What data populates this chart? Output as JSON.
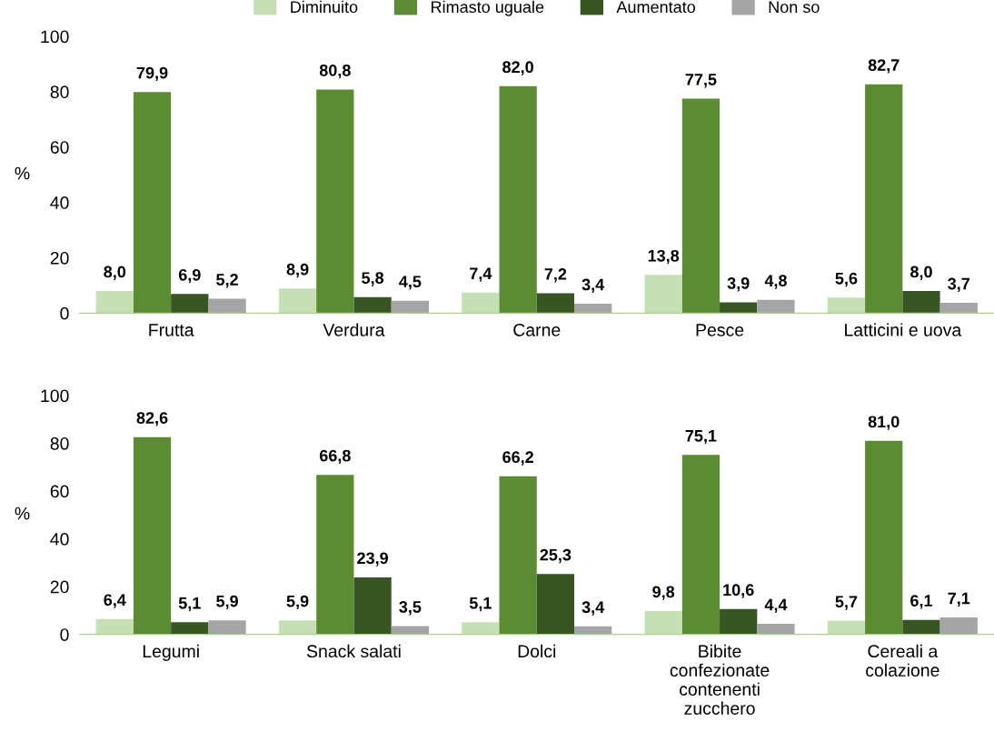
{
  "chart_data": [
    {
      "type": "bar",
      "categories": [
        "Frutta",
        "Verdura",
        "Carne",
        "Pesce",
        "Latticini e uova"
      ],
      "ylabel": "%",
      "ylim": [
        0,
        100
      ],
      "yticks": [
        0,
        20,
        40,
        60,
        80,
        100
      ],
      "grid": false,
      "legend": "top",
      "series": [
        {
          "name": "Diminuito",
          "color": "#c5e0b4",
          "values": [
            8.0,
            8.9,
            7.4,
            13.8,
            5.6
          ],
          "value_labels": [
            "8,0",
            "8,9",
            "7,4",
            "13,8",
            "5,6"
          ]
        },
        {
          "name": "Rimasto uguale",
          "color": "#5b8c33",
          "values": [
            79.9,
            80.8,
            82.0,
            77.5,
            82.7
          ],
          "value_labels": [
            "79,9",
            "80,8",
            "82,0",
            "77,5",
            "82,7"
          ]
        },
        {
          "name": "Aumentato",
          "color": "#375623",
          "values": [
            6.9,
            5.8,
            7.2,
            3.9,
            8.0
          ],
          "value_labels": [
            "6,9",
            "5,8",
            "7,2",
            "3,9",
            "8,0"
          ]
        },
        {
          "name": "Non so",
          "color": "#a5a5a5",
          "values": [
            5.2,
            4.5,
            3.4,
            4.8,
            3.7
          ],
          "value_labels": [
            "5,2",
            "4,5",
            "3,4",
            "4,8",
            "3,7"
          ]
        }
      ]
    },
    {
      "type": "bar",
      "categories": [
        "Legumi",
        "Snack salati",
        "Dolci",
        "Bibite\nconfezionate\ncontenenti\nzucchero",
        "Cereali a\ncolazione"
      ],
      "ylabel": "%",
      "ylim": [
        0,
        100
      ],
      "yticks": [
        0,
        20,
        40,
        60,
        80,
        100
      ],
      "grid": false,
      "series": [
        {
          "color": "#c5e0b4",
          "values": [
            6.4,
            5.9,
            5.1,
            9.8,
            5.7
          ],
          "value_labels": [
            "6,4",
            "5,9",
            "5,1",
            "9,8",
            "5,7"
          ]
        },
        {
          "color": "#5b8c33",
          "values": [
            82.6,
            66.8,
            66.2,
            75.1,
            81.0
          ],
          "value_labels": [
            "82,6",
            "66,8",
            "66,2",
            "75,1",
            "81,0"
          ]
        },
        {
          "color": "#375623",
          "values": [
            5.1,
            23.9,
            25.3,
            10.6,
            6.1
          ],
          "value_labels": [
            "5,1",
            "23,9",
            "25,3",
            "10,6",
            "6,1"
          ]
        },
        {
          "color": "#a5a5a5",
          "values": [
            5.9,
            3.5,
            3.4,
            4.4,
            7.1
          ],
          "value_labels": [
            "5,9",
            "3,5",
            "3,4",
            "4,4",
            "7,1"
          ]
        }
      ]
    }
  ]
}
